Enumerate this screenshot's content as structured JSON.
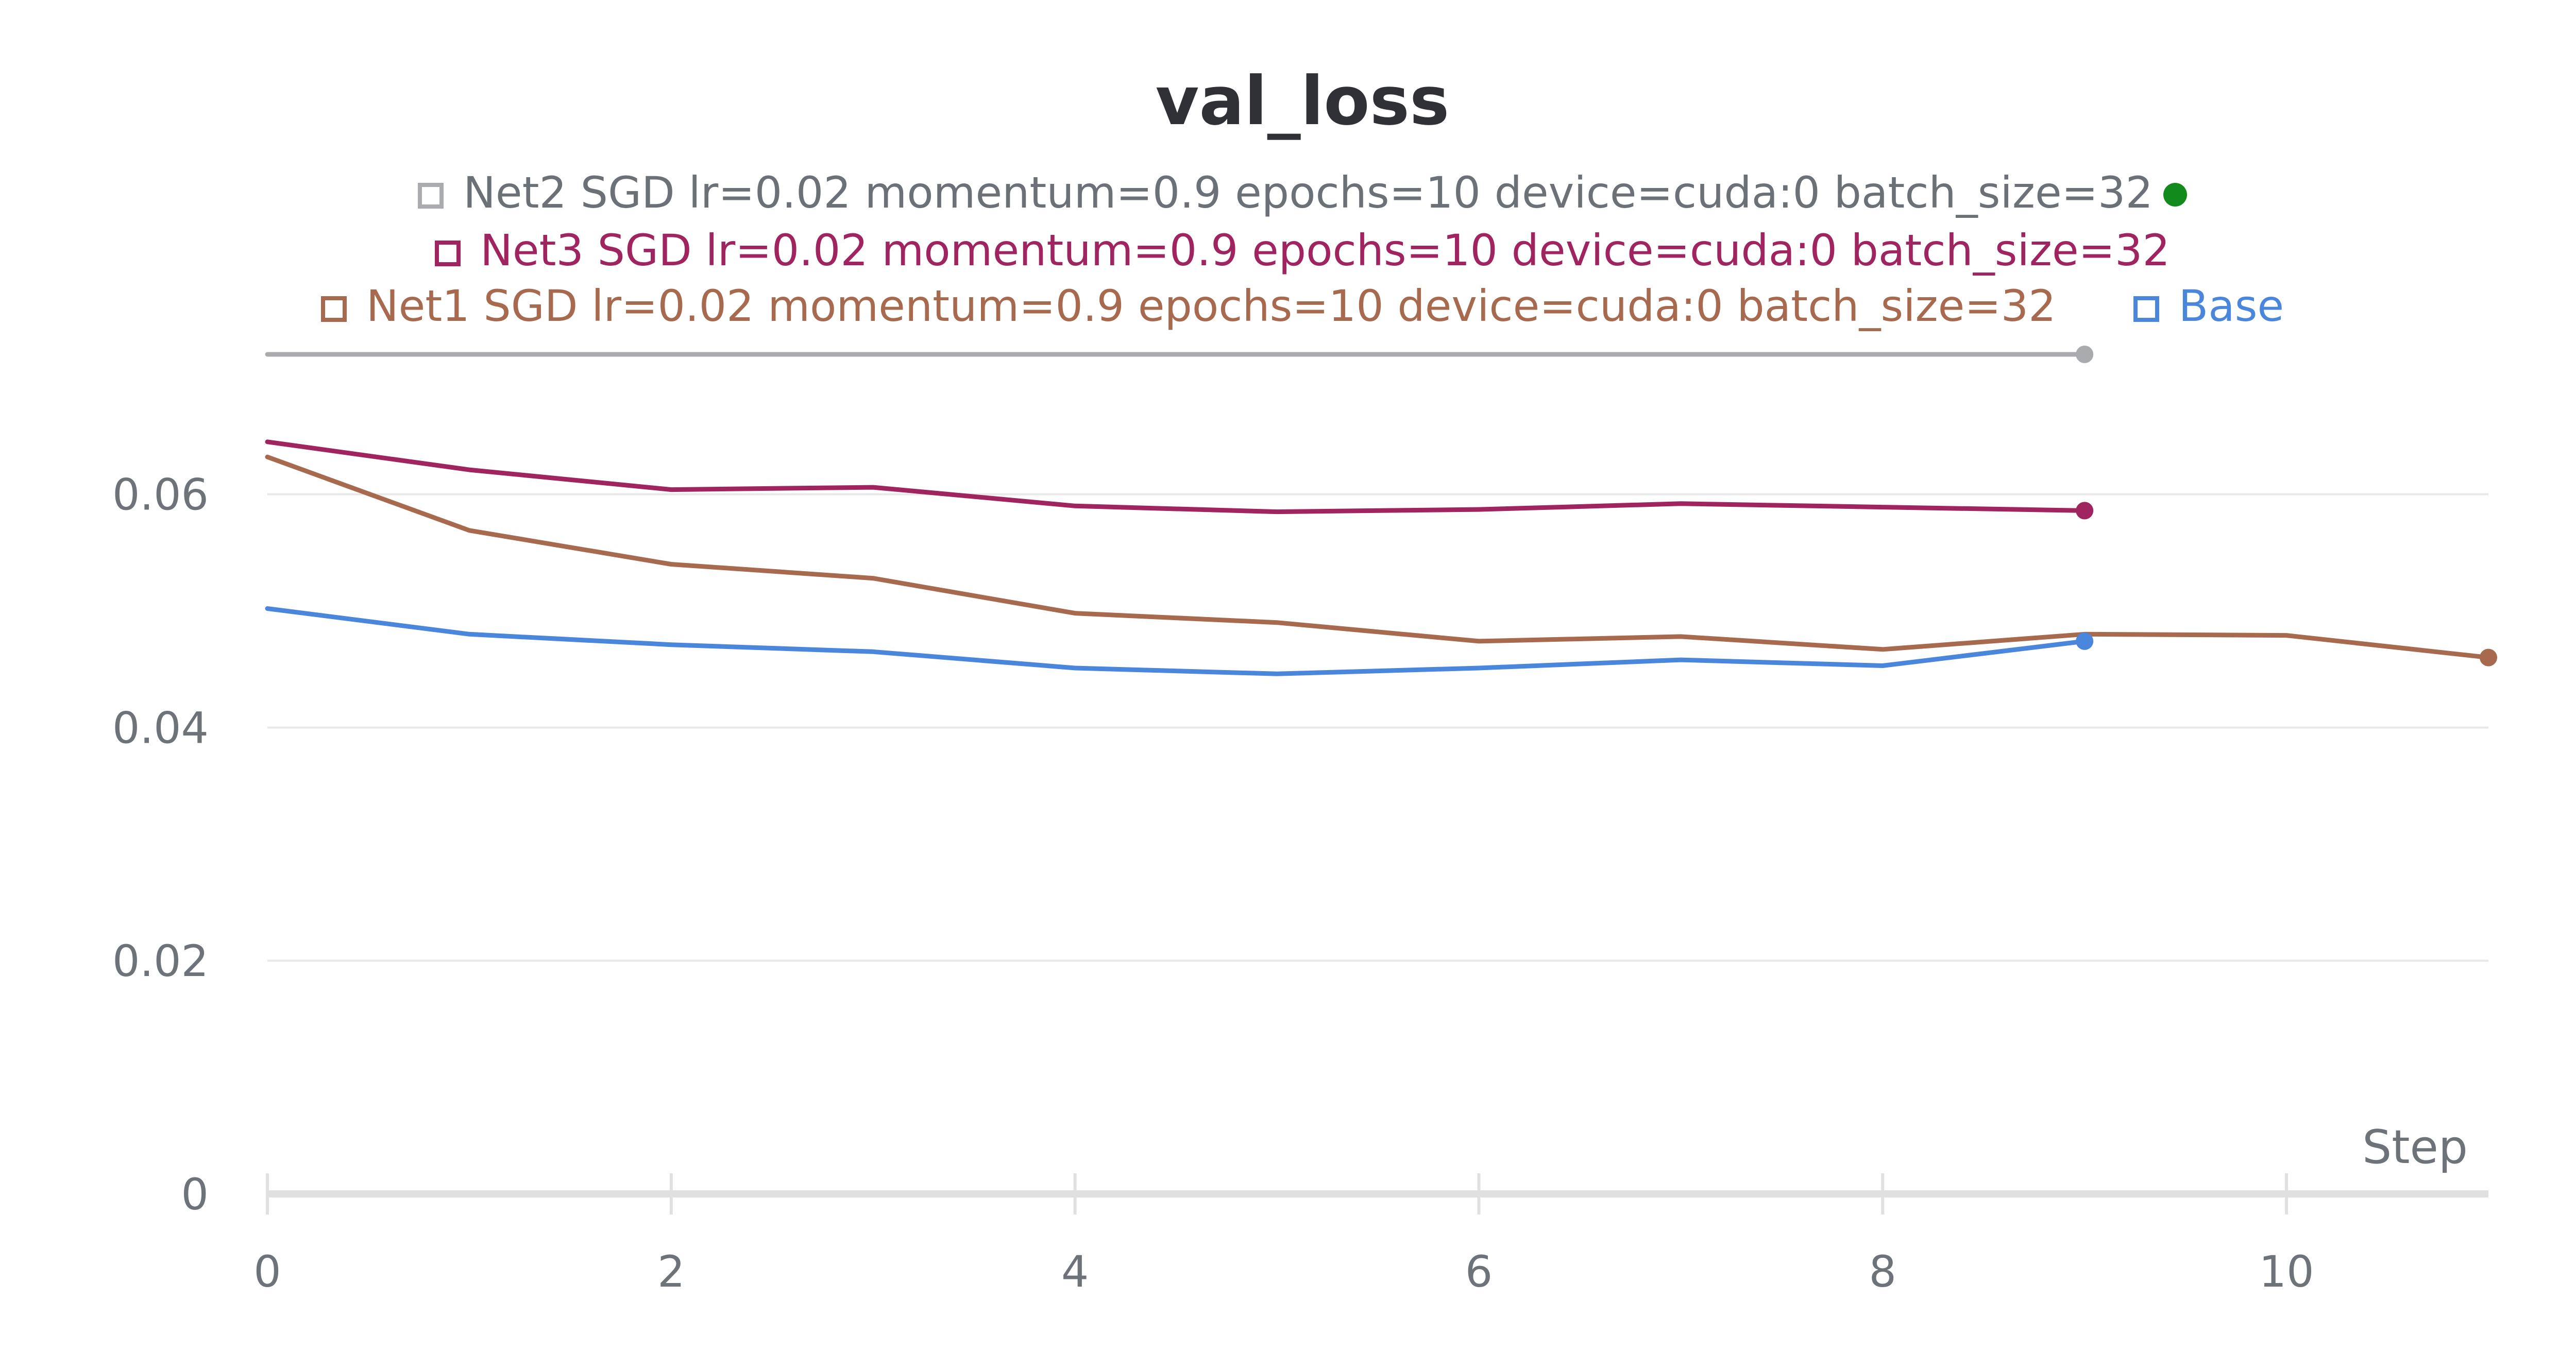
{
  "chart_data": {
    "type": "line",
    "title": "val_loss",
    "xlabel": "Step",
    "ylabel": "",
    "xlim": [
      0,
      11
    ],
    "ylim": [
      0,
      0.072
    ],
    "xticks": [
      0,
      2,
      4,
      6,
      8,
      10
    ],
    "xtick_labels": [
      "0",
      "2",
      "4",
      "6",
      "8",
      "10"
    ],
    "yticks": [
      0,
      0.02,
      0.04,
      0.06
    ],
    "ytick_labels": [
      "0",
      "0.02",
      "0.04",
      "0.06"
    ],
    "grid": true,
    "legend_position": "top-center",
    "series": [
      {
        "name": "Net2 SGD lr=0.02 momentum=0.9 epochs=10 device=cuda:0 batch_size=32",
        "color": "#a9abae",
        "status_dot_color": "#128a1c",
        "x": [
          0,
          1,
          2,
          3,
          4,
          5,
          6,
          7,
          8,
          9
        ],
        "values": [
          0.072,
          0.072,
          0.072,
          0.072,
          0.072,
          0.072,
          0.072,
          0.072,
          0.072,
          0.072
        ]
      },
      {
        "name": "Net3 SGD lr=0.02 momentum=0.9 epochs=10 device=cuda:0 batch_size=32",
        "color": "#a0245f",
        "x": [
          0,
          1,
          2,
          3,
          4,
          5,
          6,
          7,
          8,
          9
        ],
        "values": [
          0.0645,
          0.0621,
          0.0604,
          0.0606,
          0.059,
          0.0585,
          0.0587,
          0.0592,
          0.0589,
          0.0586
        ]
      },
      {
        "name": "Net1 SGD lr=0.02 momentum=0.9 epochs=10 device=cuda:0 batch_size=32",
        "color": "#a86a4f",
        "x": [
          0,
          1,
          2,
          3,
          4,
          5,
          6,
          7,
          8,
          9,
          10,
          11
        ],
        "values": [
          0.0632,
          0.0569,
          0.054,
          0.0528,
          0.0498,
          0.049,
          0.0474,
          0.0478,
          0.0467,
          0.048,
          0.0479,
          0.046
        ]
      },
      {
        "name": "Base",
        "color": "#4a86dc",
        "x": [
          0,
          1,
          2,
          3,
          4,
          5,
          6,
          7,
          8,
          9
        ],
        "values": [
          0.0502,
          0.048,
          0.0471,
          0.0465,
          0.0451,
          0.0446,
          0.0451,
          0.0458,
          0.0453,
          0.0474
        ]
      }
    ]
  }
}
